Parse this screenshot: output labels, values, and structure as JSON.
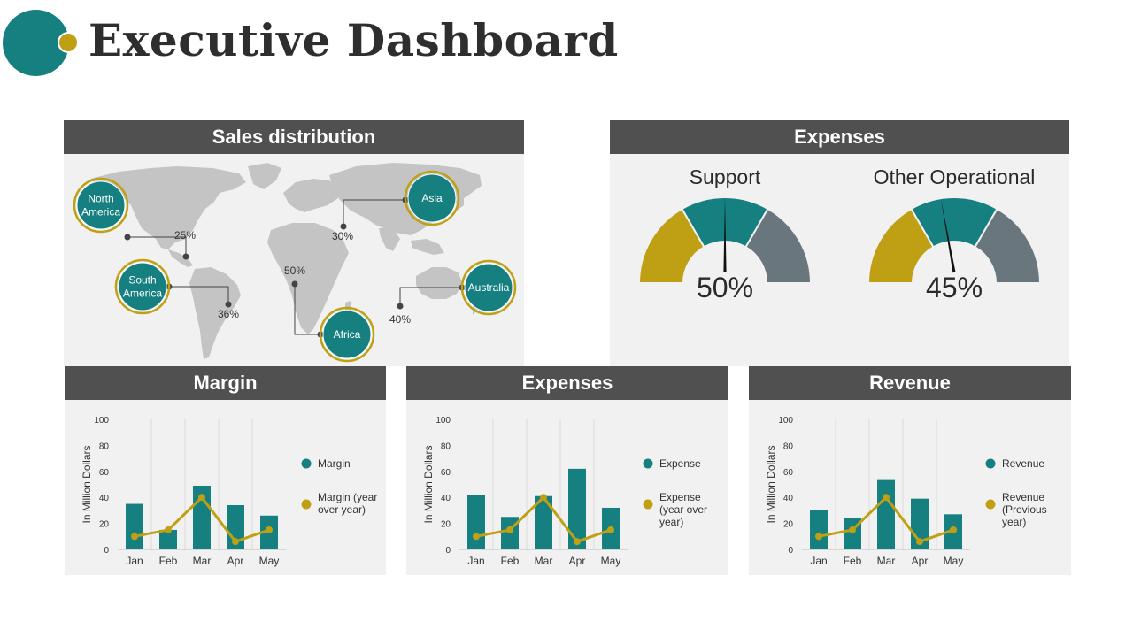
{
  "page": {
    "title": "Executive Dashboard",
    "colors": {
      "teal": "#168080",
      "gold": "#bfa015",
      "slate": "#6a767e",
      "header": "#505050",
      "panel": "#f1f1f1"
    }
  },
  "sales_distribution": {
    "title": "Sales distribution",
    "regions": [
      {
        "name_lines": [
          "North",
          "America"
        ],
        "value": "25%"
      },
      {
        "name_lines": [
          "Asia"
        ],
        "value": "30%"
      },
      {
        "name_lines": [
          "South",
          "America"
        ],
        "value": "36%"
      },
      {
        "name_lines": [
          "Africa"
        ],
        "value": "50%"
      },
      {
        "name_lines": [
          "Australia"
        ],
        "value": "40%"
      }
    ]
  },
  "expenses_gauges": {
    "title": "Expenses",
    "gauges": [
      {
        "label": "Support",
        "value_text": "50%",
        "value": 50
      },
      {
        "label": "Other Operational",
        "value_text": "45%",
        "value": 45
      }
    ]
  },
  "chart_data": [
    {
      "type": "bar",
      "title": "Margin",
      "categories": [
        "Jan",
        "Feb",
        "Mar",
        "Apr",
        "May"
      ],
      "ylabel": "In Million Dollars",
      "ylim": [
        0,
        100
      ],
      "yticks": [
        0,
        20,
        40,
        60,
        80,
        100
      ],
      "series": [
        {
          "name": "Margin",
          "kind": "bar",
          "color": "#168080",
          "values": [
            35,
            15,
            49,
            34,
            26
          ]
        },
        {
          "name": "Margin (year over year)",
          "legend_lines": [
            "Margin (year",
            "over year)"
          ],
          "kind": "line",
          "color": "#bfa015",
          "values": [
            10,
            15,
            40,
            6,
            15
          ]
        }
      ]
    },
    {
      "type": "bar",
      "title": "Expenses",
      "categories": [
        "Jan",
        "Feb",
        "Mar",
        "Apr",
        "May"
      ],
      "ylabel": "In Million Dollars",
      "ylim": [
        0,
        100
      ],
      "yticks": [
        0,
        20,
        40,
        60,
        80,
        100
      ],
      "series": [
        {
          "name": "Expense",
          "kind": "bar",
          "color": "#168080",
          "values": [
            42,
            25,
            41,
            62,
            32
          ]
        },
        {
          "name": "Expense (year over year)",
          "legend_lines": [
            "Expense",
            "(year over",
            "year)"
          ],
          "kind": "line",
          "color": "#bfa015",
          "values": [
            10,
            15,
            40,
            6,
            15
          ]
        }
      ]
    },
    {
      "type": "bar",
      "title": "Revenue",
      "categories": [
        "Jan",
        "Feb",
        "Mar",
        "Apr",
        "May"
      ],
      "ylabel": "In Million Dollars",
      "ylim": [
        0,
        100
      ],
      "yticks": [
        0,
        20,
        40,
        60,
        80,
        100
      ],
      "series": [
        {
          "name": "Revenue",
          "kind": "bar",
          "color": "#168080",
          "values": [
            30,
            24,
            54,
            39,
            27
          ]
        },
        {
          "name": "Revenue (Previous year)",
          "legend_lines": [
            "Revenue",
            "(Previous",
            "year)"
          ],
          "kind": "line",
          "color": "#bfa015",
          "values": [
            10,
            15,
            40,
            6,
            15
          ]
        }
      ]
    }
  ]
}
